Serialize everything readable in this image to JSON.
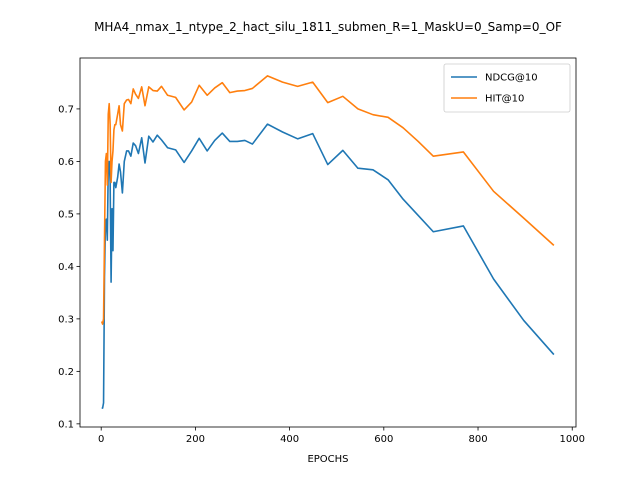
{
  "chart_data": {
    "type": "line",
    "title": "MHA4_nmax_1_ntype_2_hact_silu_1811_submen_R=1_MaskU=0_Samp=0_OF",
    "xlabel": "EPOCHS",
    "ylabel": "",
    "xlim": [
      -45,
      1008
    ],
    "ylim": [
      0.094,
      0.797
    ],
    "xticks": [
      0,
      200,
      400,
      600,
      800,
      1000
    ],
    "yticks": [
      0.1,
      0.2,
      0.3,
      0.4,
      0.5,
      0.6,
      0.7
    ],
    "grid": false,
    "legend_position": "top-right",
    "series": [
      {
        "name": "NDCG@10",
        "color": "#1f77b4",
        "x": [
          1,
          3,
          5,
          7,
          9,
          11,
          13,
          15,
          17,
          19,
          21,
          23,
          25,
          27,
          29,
          31,
          33,
          35,
          38,
          41,
          45,
          49,
          54,
          58,
          63,
          68,
          73,
          79,
          86,
          93,
          101,
          110,
          119,
          128,
          141,
          158,
          176,
          192,
          208,
          225,
          241,
          257,
          273,
          289,
          305,
          321,
          353,
          385,
          417,
          449,
          481,
          513,
          545,
          577,
          609,
          641,
          673,
          705,
          769,
          833,
          897,
          961
        ],
        "y": [
          0.13,
          0.13,
          0.14,
          0.38,
          0.48,
          0.49,
          0.45,
          0.59,
          0.6,
          0.56,
          0.37,
          0.51,
          0.43,
          0.56,
          0.56,
          0.55,
          0.56,
          0.57,
          0.595,
          0.58,
          0.54,
          0.6,
          0.62,
          0.62,
          0.61,
          0.635,
          0.63,
          0.615,
          0.645,
          0.597,
          0.648,
          0.637,
          0.65,
          0.641,
          0.626,
          0.622,
          0.598,
          0.62,
          0.644,
          0.62,
          0.64,
          0.654,
          0.638,
          0.638,
          0.64,
          0.633,
          0.671,
          0.656,
          0.643,
          0.653,
          0.594,
          0.621,
          0.587,
          0.584,
          0.565,
          0.528,
          0.497,
          0.466,
          0.477,
          0.376,
          0.297,
          0.232
        ]
      },
      {
        "name": "HIT@10",
        "color": "#ff7f0e",
        "x": [
          1,
          3,
          5,
          7,
          9,
          11,
          13,
          15,
          17,
          19,
          21,
          23,
          25,
          27,
          29,
          31,
          33,
          35,
          38,
          41,
          45,
          49,
          54,
          58,
          63,
          68,
          73,
          79,
          86,
          93,
          101,
          110,
          119,
          128,
          141,
          158,
          176,
          192,
          208,
          225,
          241,
          257,
          273,
          289,
          305,
          321,
          353,
          385,
          417,
          449,
          481,
          513,
          545,
          577,
          609,
          641,
          673,
          705,
          769,
          833,
          897,
          961
        ],
        "y": [
          0.295,
          0.29,
          0.3,
          0.45,
          0.6,
          0.615,
          0.555,
          0.69,
          0.71,
          0.67,
          0.56,
          0.6,
          0.62,
          0.66,
          0.67,
          0.67,
          0.68,
          0.69,
          0.706,
          0.67,
          0.658,
          0.71,
          0.717,
          0.718,
          0.71,
          0.738,
          0.728,
          0.72,
          0.742,
          0.706,
          0.742,
          0.735,
          0.734,
          0.743,
          0.726,
          0.722,
          0.698,
          0.713,
          0.745,
          0.726,
          0.74,
          0.75,
          0.731,
          0.734,
          0.735,
          0.739,
          0.763,
          0.751,
          0.743,
          0.751,
          0.712,
          0.724,
          0.7,
          0.689,
          0.684,
          0.664,
          0.638,
          0.61,
          0.618,
          0.543,
          0.492,
          0.44
        ]
      }
    ]
  }
}
